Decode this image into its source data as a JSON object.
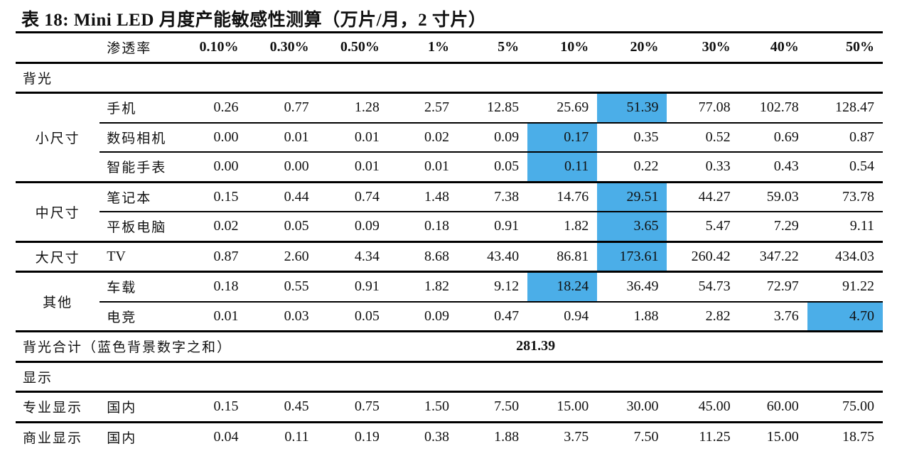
{
  "title": "表 18:  Mini LED 月度产能敏感性测算（万片/月，2 寸片）",
  "header": {
    "label": "渗透率",
    "columns": [
      "0.10%",
      "0.30%",
      "0.50%",
      "1%",
      "5%",
      "10%",
      "20%",
      "30%",
      "40%",
      "50%"
    ]
  },
  "highlight_color": "#4BAEE8",
  "backlight": {
    "section_label": "背光",
    "groups": [
      {
        "category": "小尺寸",
        "rows": [
          {
            "label": "手机",
            "values": [
              "0.26",
              "0.77",
              "1.28",
              "2.57",
              "12.85",
              "25.69",
              "51.39",
              "77.08",
              "102.78",
              "128.47"
            ],
            "highlight_index": 6
          },
          {
            "label": "数码相机",
            "values": [
              "0.00",
              "0.01",
              "0.01",
              "0.02",
              "0.09",
              "0.17",
              "0.35",
              "0.52",
              "0.69",
              "0.87"
            ],
            "highlight_index": 5
          },
          {
            "label": "智能手表",
            "values": [
              "0.00",
              "0.00",
              "0.01",
              "0.01",
              "0.05",
              "0.11",
              "0.22",
              "0.33",
              "0.43",
              "0.54"
            ],
            "highlight_index": 5
          }
        ]
      },
      {
        "category": "中尺寸",
        "rows": [
          {
            "label": "笔记本",
            "values": [
              "0.15",
              "0.44",
              "0.74",
              "1.48",
              "7.38",
              "14.76",
              "29.51",
              "44.27",
              "59.03",
              "73.78"
            ],
            "highlight_index": 6
          },
          {
            "label": "平板电脑",
            "values": [
              "0.02",
              "0.05",
              "0.09",
              "0.18",
              "0.91",
              "1.82",
              "3.65",
              "5.47",
              "7.29",
              "9.11"
            ],
            "highlight_index": 6
          }
        ]
      },
      {
        "category": "大尺寸",
        "rows": [
          {
            "label": "TV",
            "values": [
              "0.87",
              "2.60",
              "4.34",
              "8.68",
              "43.40",
              "86.81",
              "173.61",
              "260.42",
              "347.22",
              "434.03"
            ],
            "highlight_index": 6
          }
        ]
      },
      {
        "category": "其他",
        "rows": [
          {
            "label": "车载",
            "values": [
              "0.18",
              "0.55",
              "0.91",
              "1.82",
              "9.12",
              "18.24",
              "36.49",
              "54.73",
              "72.97",
              "91.22"
            ],
            "highlight_index": 5
          },
          {
            "label": "电竞",
            "values": [
              "0.01",
              "0.03",
              "0.05",
              "0.09",
              "0.47",
              "0.94",
              "1.88",
              "2.82",
              "3.76",
              "4.70"
            ],
            "highlight_index": 9
          }
        ]
      }
    ],
    "total_label": "背光合计（蓝色背景数字之和）",
    "total_value": "281.39"
  },
  "display": {
    "section_label": "显示",
    "rows": [
      {
        "category": "专业显示",
        "label": "国内",
        "values": [
          "0.15",
          "0.45",
          "0.75",
          "1.50",
          "7.50",
          "15.00",
          "30.00",
          "45.00",
          "60.00",
          "75.00"
        ]
      },
      {
        "category": "商业显示",
        "label": "国内",
        "values": [
          "0.04",
          "0.11",
          "0.19",
          "0.38",
          "1.88",
          "3.75",
          "7.50",
          "11.25",
          "15.00",
          "18.75"
        ]
      }
    ]
  }
}
